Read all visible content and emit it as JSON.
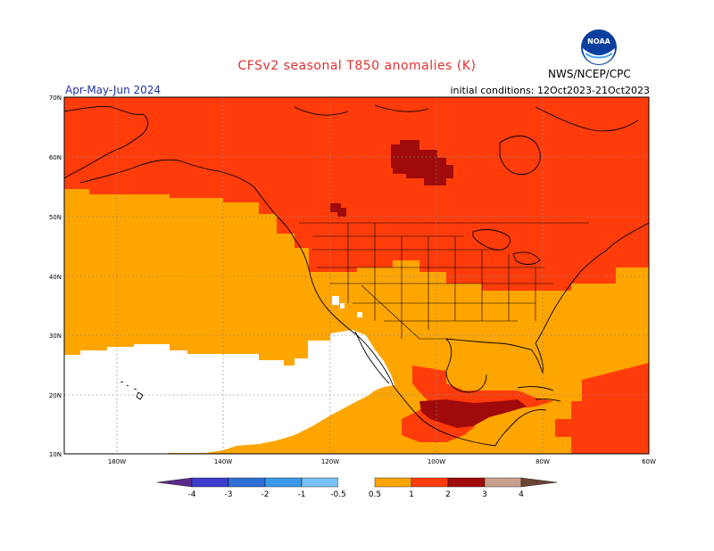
{
  "header": {
    "title": "CFSv2 seasonal T850 anomalies (K)",
    "period": "Apr-May-Jun 2024",
    "initial_conditions": "initial conditions: 12Oct2023-21Oct2023",
    "agency": "NWS/NCEP/CPC",
    "logo_text": "NOAA"
  },
  "map": {
    "lat_labels": [
      "70N",
      "60N",
      "50N",
      "40N",
      "30N",
      "20N",
      "10N"
    ],
    "lon_labels": [
      "180W",
      "140W",
      "120W",
      "100W",
      "80W",
      "60W"
    ]
  },
  "legend": {
    "tick_labels": [
      "-4",
      "-3",
      "-2",
      "-1",
      "-0.5",
      "0.5",
      "1",
      "2",
      "3",
      "4"
    ],
    "colors": {
      "below_-4": "#5a2a8a",
      "-4_-3": "#3c3ccc",
      "-3_-2": "#2f6fd6",
      "-2_-1": "#3a9ae8",
      "-1_-0.5": "#78c0f5",
      "-0.5_0.5": "#ffffff",
      "0.5_1": "#ffa500",
      "1_2": "#ff3c0a",
      "2_3": "#a00a0a",
      "3_4": "#c9a08f",
      "above_4": "#6b4434"
    }
  },
  "colors": {
    "title": "#e03030",
    "period": "#2233aa",
    "neutral": "#ffffff",
    "warm_0.5_1": "#ffa500",
    "warm_1_2": "#ff3c0a",
    "warm_2_3": "#a00a0a"
  }
}
